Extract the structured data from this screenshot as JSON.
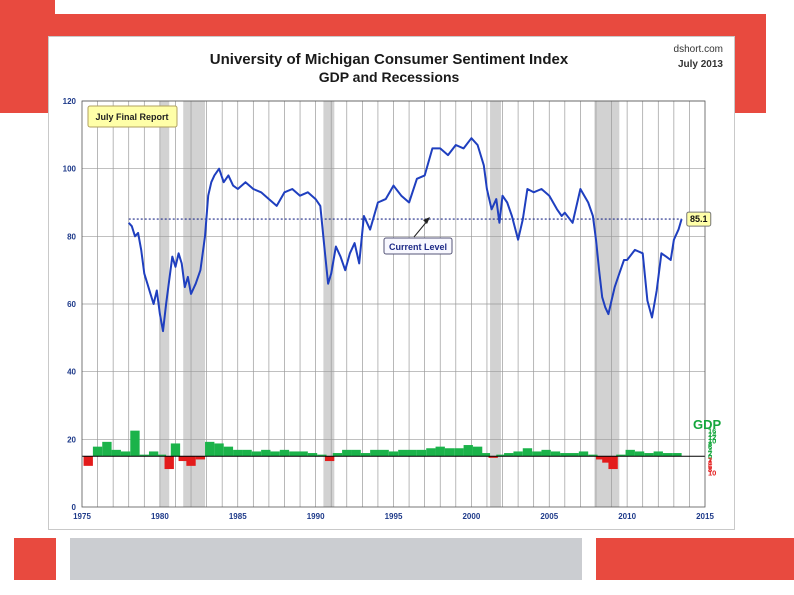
{
  "chart_data": {
    "type": "line",
    "title": "University of Michigan Consumer Sentiment Index",
    "subtitle": "GDP and Recessions",
    "source": "dshort.com",
    "date": "July 2013",
    "badge": "July Final Report",
    "current_level_label": "Current Level",
    "current_value": 85.1,
    "current_value_label": "85.1",
    "xlim": [
      1975,
      2015
    ],
    "ylim": [
      0,
      120
    ],
    "x_ticks": [
      1975,
      1980,
      1985,
      1990,
      1995,
      2000,
      2005,
      2010,
      2015
    ],
    "y_ticks": [
      0,
      20,
      40,
      60,
      80,
      100,
      120
    ],
    "gdp_axis_label": "GDP",
    "gdp_ticks_positive": [
      16,
      14,
      12,
      10,
      8,
      6,
      4,
      2,
      0
    ],
    "gdp_ticks_negative": [
      2,
      4,
      6,
      8,
      10
    ],
    "recessions": [
      [
        1980.0,
        1980.6
      ],
      [
        1981.5,
        1982.9
      ],
      [
        1990.5,
        1991.2
      ],
      [
        2001.2,
        2001.9
      ],
      [
        2007.9,
        2009.5
      ]
    ],
    "sentiment": {
      "name": "Consumer Sentiment",
      "x": [
        1978.0,
        1978.2,
        1978.4,
        1978.6,
        1978.8,
        1979.0,
        1979.2,
        1979.4,
        1979.6,
        1979.8,
        1980.0,
        1980.2,
        1980.4,
        1980.6,
        1980.8,
        1981.0,
        1981.2,
        1981.4,
        1981.6,
        1981.8,
        1982.0,
        1982.3,
        1982.6,
        1982.9,
        1983.1,
        1983.3,
        1983.5,
        1983.8,
        1984.1,
        1984.4,
        1984.7,
        1985.0,
        1985.5,
        1986.0,
        1986.5,
        1987.0,
        1987.5,
        1988.0,
        1988.5,
        1989.0,
        1989.5,
        1990.0,
        1990.3,
        1990.6,
        1990.8,
        1991.0,
        1991.3,
        1991.6,
        1991.9,
        1992.2,
        1992.5,
        1992.8,
        1993.1,
        1993.5,
        1994.0,
        1994.5,
        1995.0,
        1995.5,
        1996.0,
        1996.5,
        1997.0,
        1997.5,
        1998.0,
        1998.5,
        1999.0,
        1999.5,
        2000.0,
        2000.4,
        2000.8,
        2001.0,
        2001.3,
        2001.6,
        2001.8,
        2002.0,
        2002.3,
        2002.6,
        2003.0,
        2003.3,
        2003.6,
        2004.0,
        2004.5,
        2005.0,
        2005.5,
        2005.8,
        2006.0,
        2006.5,
        2007.0,
        2007.5,
        2007.8,
        2008.0,
        2008.2,
        2008.4,
        2008.6,
        2008.8,
        2009.0,
        2009.2,
        2009.5,
        2009.8,
        2010.0,
        2010.5,
        2011.0,
        2011.3,
        2011.6,
        2011.9,
        2012.2,
        2012.5,
        2012.8,
        2013.0,
        2013.3,
        2013.5
      ],
      "values": [
        84,
        83,
        80,
        81,
        76,
        69,
        66,
        63,
        60,
        64,
        57,
        52,
        60,
        67,
        74,
        71,
        75,
        72,
        65,
        68,
        63,
        66,
        70,
        80,
        92,
        96,
        98,
        100,
        96,
        98,
        95,
        94,
        96,
        94,
        93,
        91,
        89,
        93,
        94,
        92,
        93,
        91,
        89,
        75,
        66,
        69,
        77,
        74,
        70,
        75,
        78,
        72,
        86,
        82,
        90,
        91,
        95,
        92,
        90,
        97,
        98,
        106,
        106,
        104,
        107,
        106,
        109,
        107,
        101,
        94,
        88,
        91,
        84,
        92,
        90,
        86,
        79,
        85,
        94,
        93,
        94,
        92,
        88,
        86,
        87,
        84,
        94,
        90,
        86,
        79,
        70,
        62,
        59,
        57,
        61,
        65,
        69,
        73,
        73,
        76,
        75,
        61,
        56,
        64,
        75,
        74,
        73,
        79,
        82,
        85.1
      ]
    },
    "gdp": {
      "name": "GDP",
      "x": [
        1975.4,
        1976.0,
        1976.6,
        1977.2,
        1977.8,
        1978.4,
        1979.0,
        1979.6,
        1980.1,
        1980.6,
        1981.0,
        1981.5,
        1982.0,
        1982.6,
        1983.2,
        1983.8,
        1984.4,
        1985.0,
        1985.6,
        1986.2,
        1986.8,
        1987.4,
        1988.0,
        1988.6,
        1989.2,
        1989.8,
        1990.4,
        1990.9,
        1991.4,
        1992.0,
        1992.6,
        1993.2,
        1993.8,
        1994.4,
        1995.0,
        1995.6,
        1996.2,
        1996.8,
        1997.4,
        1998.0,
        1998.6,
        1999.2,
        1999.8,
        2000.4,
        2000.9,
        2001.4,
        2001.9,
        2002.4,
        2003.0,
        2003.6,
        2004.2,
        2004.8,
        2005.4,
        2006.0,
        2006.6,
        2007.2,
        2007.8,
        2008.3,
        2008.7,
        2009.1,
        2009.6,
        2010.2,
        2010.8,
        2011.4,
        2012.0,
        2012.6,
        2013.2
      ],
      "values": [
        -6,
        6,
        9,
        4,
        3,
        16,
        1,
        3,
        1,
        -8,
        8,
        -3,
        -6,
        -2,
        9,
        8,
        6,
        4,
        4,
        3,
        4,
        3,
        4,
        3,
        3,
        2,
        1,
        -3,
        2,
        4,
        4,
        2,
        4,
        4,
        3,
        4,
        4,
        4,
        5,
        6,
        5,
        5,
        7,
        6,
        2,
        -1,
        1,
        2,
        3,
        5,
        3,
        4,
        3,
        2,
        2,
        3,
        1,
        -2,
        -4,
        -8,
        1,
        4,
        3,
        2,
        3,
        2,
        2
      ]
    }
  }
}
